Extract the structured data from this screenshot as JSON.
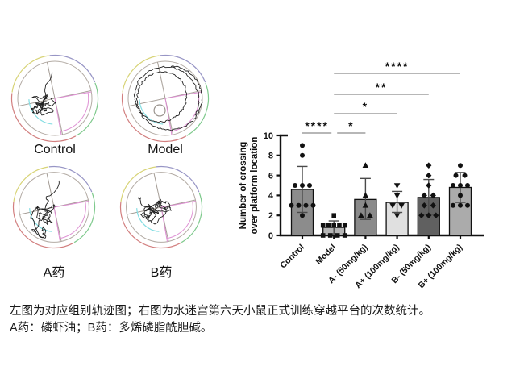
{
  "page": {
    "background": "#ffffff"
  },
  "track_panels": {
    "items": [
      {
        "id": "control",
        "label": "Control"
      },
      {
        "id": "model",
        "label": "Model"
      },
      {
        "id": "drug_a",
        "label": "A药"
      },
      {
        "id": "drug_b",
        "label": "B药"
      }
    ]
  },
  "caption": {
    "line1": "左图为对应组别轨迹图；右图为水迷宫第六天小鼠正式训练穿越平台的次数统计。",
    "line2": "A药：磷虾油；B药：多烯磷脂酰胆碱。"
  },
  "chart_data": {
    "type": "bar",
    "title": "",
    "ylabel_line1": "Number of crossing",
    "ylabel_line2": "over platform location",
    "xlabel": "",
    "ylim": [
      0,
      10
    ],
    "yticks": [
      0,
      2,
      4,
      6,
      8,
      10
    ],
    "grid": false,
    "legend": false,
    "categories": [
      "Control",
      "Model",
      "A- (50mg/kg)",
      "A+ (100mg/kg)",
      "B- (50mg/kg)",
      "B+ (100mg/kg)"
    ],
    "series": [
      {
        "name": "Number of crossing over platform location",
        "values": [
          4.6,
          0.8,
          3.6,
          3.3,
          3.8,
          4.8
        ]
      }
    ],
    "error_low": [
      2.3,
      0.15,
      1.6,
      2.3,
      2.1,
      3.3
    ],
    "error_high": [
      6.9,
      1.45,
      5.7,
      4.4,
      5.6,
      6.3
    ],
    "points": [
      [
        9,
        8,
        5,
        5,
        5,
        3,
        3,
        3,
        3,
        2
      ],
      [
        2,
        1,
        1,
        1,
        1,
        1,
        0,
        0,
        0,
        0
      ],
      [
        7,
        4,
        3,
        2,
        2
      ],
      [
        5,
        4,
        3,
        3,
        2
      ],
      [
        7,
        6,
        5,
        4,
        4,
        3,
        3,
        2,
        2,
        2
      ],
      [
        7,
        6,
        6,
        5,
        5,
        5,
        4,
        3,
        3,
        3
      ]
    ],
    "point_markers": [
      "circle",
      "square",
      "triangle-up",
      "triangle-down",
      "diamond",
      "circle"
    ],
    "bar_colors": [
      "#8c8c8c",
      "#b5b5b5",
      "#8a8a8a",
      "#e0e0e0",
      "#606060",
      "#ababab"
    ],
    "bar_outline": "#111111",
    "point_color": "#111111",
    "error_color": "#4a4a4a",
    "sig_line_color": "#8c8c8c",
    "significance": [
      {
        "from": "Control",
        "to": "Model",
        "label": "****",
        "level": 0
      },
      {
        "from": "Model",
        "to": "A- (50mg/kg)",
        "label": "*",
        "level": 0
      },
      {
        "from": "Model",
        "to": "A+ (100mg/kg)",
        "label": "*",
        "level": 1
      },
      {
        "from": "Model",
        "to": "B- (50mg/kg)",
        "label": "**",
        "level": 2
      },
      {
        "from": "Model",
        "to": "B+ (100mg/kg)",
        "label": "****",
        "level": 3
      }
    ]
  },
  "maze": {
    "arc_colors": {
      "top_left": "#d8d478",
      "top_right": "#9795c5",
      "right": "#7ec98c",
      "bottom": "#d27f7f"
    },
    "inner_circle_color": "#b3aba4",
    "quadrant_line_color": "#a59d96",
    "target_quadrant_color": "#de8fd3",
    "counter_arc_color": "#84dde2",
    "platform_color": "#9a948e",
    "track_color": "#222222"
  }
}
